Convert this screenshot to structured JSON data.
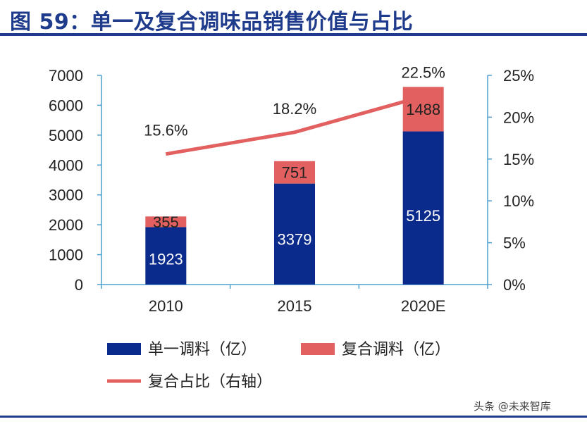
{
  "header": {
    "title": "图 59：单一及复合调味品销售价值与占比"
  },
  "watermark": "头条 @未来智库",
  "chart_data": {
    "type": "bar",
    "stacked": true,
    "categories": [
      "2010",
      "2015",
      "2020E"
    ],
    "series": [
      {
        "name": "单一调料（亿）",
        "values": [
          1923,
          3379,
          5125
        ],
        "color": "#0a2a8c"
      },
      {
        "name": "复合调料（亿）",
        "values": [
          355,
          751,
          1488
        ],
        "color": "#e26060"
      }
    ],
    "line_series": {
      "name": "复合占比（右轴）",
      "values": [
        15.6,
        18.2,
        22.5
      ],
      "labels": [
        "15.6%",
        "18.2%",
        "22.5%"
      ],
      "color": "#e26060",
      "axis": "right"
    },
    "ylim": [
      0,
      7000
    ],
    "yticks": [
      "0",
      "1000",
      "2000",
      "3000",
      "4000",
      "5000",
      "6000",
      "7000"
    ],
    "y2lim": [
      0,
      25
    ],
    "y2ticks": [
      "0%",
      "5%",
      "10%",
      "15%",
      "20%",
      "25%"
    ],
    "legend_position": "bottom",
    "axis_color": "#4aa0d0"
  }
}
